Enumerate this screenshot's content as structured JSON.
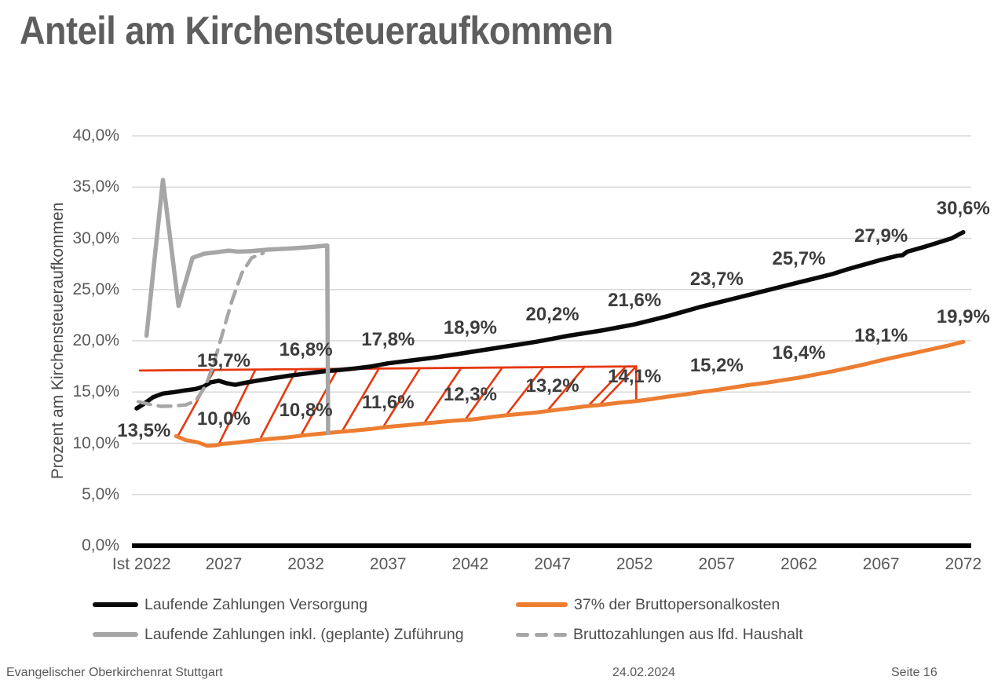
{
  "page": {
    "title": "Anteil am Kirchensteueraufkommen"
  },
  "footer": {
    "organization": "Evangelischer Oberkirchenrat Stuttgart",
    "date": "24.02.2024",
    "page_label": "Seite 16"
  },
  "colors": {
    "title_text": "#5e5e5e",
    "axis_text": "#595959",
    "data_label_text": "#3d3d3d",
    "gridline": "#d9d9d9",
    "axis_line": "#000000",
    "series_black": "#0a0a0a",
    "series_orange": "#ED7D31",
    "series_gray": "#a6a6a6",
    "hatch_red": "#e6380f"
  },
  "chart_data": {
    "type": "line",
    "title": "Anteil am Kirchensteueraufkommen",
    "ylabel": "Prozent am Kirchensteueraufkommen",
    "xlabel": "",
    "ylim": [
      0,
      40
    ],
    "grid": true,
    "legend_position": "bottom",
    "yticks": [
      {
        "pct": 0,
        "label": "0,0%"
      },
      {
        "pct": 5,
        "label": "5,0%"
      },
      {
        "pct": 10,
        "label": "10,0%"
      },
      {
        "pct": 15,
        "label": "15,0%"
      },
      {
        "pct": 20,
        "label": "20,0%"
      },
      {
        "pct": 25,
        "label": "25,0%"
      },
      {
        "pct": 30,
        "label": "30,0%"
      },
      {
        "pct": 35,
        "label": "35,0%"
      },
      {
        "pct": 40,
        "label": "40,0%"
      }
    ],
    "xticks": [
      {
        "year": 2022,
        "label": "Ist 2022"
      },
      {
        "year": 2027,
        "label": "2027"
      },
      {
        "year": 2032,
        "label": "2032"
      },
      {
        "year": 2037,
        "label": "2037"
      },
      {
        "year": 2042,
        "label": "2042"
      },
      {
        "year": 2047,
        "label": "2047"
      },
      {
        "year": 2052,
        "label": "2052"
      },
      {
        "year": 2057,
        "label": "2057"
      },
      {
        "year": 2062,
        "label": "2062"
      },
      {
        "year": 2067,
        "label": "2067"
      },
      {
        "year": 2072,
        "label": "2072"
      }
    ],
    "series": [
      {
        "id": "versorgung",
        "name": "Laufende Zahlungen Versorgung",
        "color": "#0a0a0a",
        "style": "solid",
        "stroke_width": 5.5,
        "points": [
          [
            2021.7,
            13.4
          ],
          [
            2022.1,
            13.8
          ],
          [
            2022.7,
            14.5
          ],
          [
            2023.3,
            14.85
          ],
          [
            2024,
            15.0
          ],
          [
            2024.6,
            15.15
          ],
          [
            2025.3,
            15.3
          ],
          [
            2025.8,
            15.55
          ],
          [
            2026.2,
            15.95
          ],
          [
            2026.7,
            16.1
          ],
          [
            2027.2,
            15.85
          ],
          [
            2027.7,
            15.7
          ],
          [
            2028.3,
            15.9
          ],
          [
            2029,
            16.1
          ],
          [
            2030,
            16.35
          ],
          [
            2031,
            16.6
          ],
          [
            2032,
            16.8
          ],
          [
            2033,
            17.0
          ],
          [
            2034,
            17.15
          ],
          [
            2035,
            17.3
          ],
          [
            2036,
            17.5
          ],
          [
            2037,
            17.8
          ],
          [
            2038,
            18.0
          ],
          [
            2039,
            18.2
          ],
          [
            2040,
            18.4
          ],
          [
            2041,
            18.65
          ],
          [
            2042,
            18.9
          ],
          [
            2043,
            19.15
          ],
          [
            2044,
            19.4
          ],
          [
            2045,
            19.65
          ],
          [
            2046,
            19.9
          ],
          [
            2047,
            20.2
          ],
          [
            2048,
            20.5
          ],
          [
            2049,
            20.75
          ],
          [
            2050,
            21.0
          ],
          [
            2051,
            21.3
          ],
          [
            2052,
            21.6
          ],
          [
            2053,
            22.0
          ],
          [
            2054,
            22.4
          ],
          [
            2055,
            22.85
          ],
          [
            2056,
            23.3
          ],
          [
            2057,
            23.7
          ],
          [
            2058,
            24.1
          ],
          [
            2059,
            24.5
          ],
          [
            2060,
            24.9
          ],
          [
            2061,
            25.3
          ],
          [
            2062,
            25.7
          ],
          [
            2063,
            26.1
          ],
          [
            2064,
            26.5
          ],
          [
            2065,
            27.0
          ],
          [
            2066,
            27.45
          ],
          [
            2067,
            27.9
          ],
          [
            2068,
            28.3
          ],
          [
            2068.3,
            28.35
          ],
          [
            2068.6,
            28.7
          ],
          [
            2069.5,
            29.1
          ],
          [
            2070.5,
            29.6
          ],
          [
            2071.3,
            30.0
          ],
          [
            2072,
            30.6
          ]
        ],
        "labels": [
          {
            "year": 2022,
            "value": 13.5,
            "text": "13,5%",
            "placement": "below"
          },
          {
            "year": 2027,
            "value": 15.7,
            "text": "15,7%",
            "placement": "above"
          },
          {
            "year": 2032,
            "value": 16.8,
            "text": "16,8%",
            "placement": "above"
          },
          {
            "year": 2037,
            "value": 17.8,
            "text": "17,8%",
            "placement": "above"
          },
          {
            "year": 2042,
            "value": 18.9,
            "text": "18,9%",
            "placement": "above"
          },
          {
            "year": 2047,
            "value": 20.2,
            "text": "20,2%",
            "placement": "above"
          },
          {
            "year": 2052,
            "value": 21.6,
            "text": "21,6%",
            "placement": "above"
          },
          {
            "year": 2057,
            "value": 23.7,
            "text": "23,7%",
            "placement": "above"
          },
          {
            "year": 2062,
            "value": 25.7,
            "text": "25,7%",
            "placement": "above"
          },
          {
            "year": 2067,
            "value": 27.9,
            "text": "27,9%",
            "placement": "above"
          },
          {
            "year": 2072,
            "value": 30.6,
            "text": "30,6%",
            "placement": "above"
          }
        ]
      },
      {
        "id": "bruttopersonalkosten",
        "name": "37% der Bruttopersonalkosten",
        "color": "#ED7D31",
        "style": "solid",
        "stroke_width": 5,
        "points": [
          [
            2024.1,
            10.7
          ],
          [
            2024.7,
            10.3
          ],
          [
            2025.4,
            10.1
          ],
          [
            2026,
            9.75
          ],
          [
            2026.5,
            9.8
          ],
          [
            2027,
            9.95
          ],
          [
            2028,
            10.1
          ],
          [
            2029,
            10.3
          ],
          [
            2030,
            10.45
          ],
          [
            2031,
            10.6
          ],
          [
            2032,
            10.8
          ],
          [
            2033,
            10.95
          ],
          [
            2034,
            11.1
          ],
          [
            2035,
            11.25
          ],
          [
            2036,
            11.4
          ],
          [
            2037,
            11.6
          ],
          [
            2038,
            11.75
          ],
          [
            2039,
            11.9
          ],
          [
            2040,
            12.05
          ],
          [
            2041,
            12.2
          ],
          [
            2042,
            12.3
          ],
          [
            2043,
            12.5
          ],
          [
            2044,
            12.7
          ],
          [
            2045,
            12.85
          ],
          [
            2046,
            13.0
          ],
          [
            2047,
            13.2
          ],
          [
            2048,
            13.4
          ],
          [
            2049,
            13.6
          ],
          [
            2050,
            13.75
          ],
          [
            2051,
            13.95
          ],
          [
            2052,
            14.1
          ],
          [
            2053,
            14.3
          ],
          [
            2054,
            14.55
          ],
          [
            2055,
            14.75
          ],
          [
            2056,
            15.0
          ],
          [
            2057,
            15.2
          ],
          [
            2058,
            15.45
          ],
          [
            2059,
            15.7
          ],
          [
            2060,
            15.9
          ],
          [
            2061,
            16.15
          ],
          [
            2062,
            16.4
          ],
          [
            2063,
            16.7
          ],
          [
            2064,
            17.0
          ],
          [
            2065,
            17.35
          ],
          [
            2066,
            17.7
          ],
          [
            2067,
            18.1
          ],
          [
            2068,
            18.45
          ],
          [
            2069,
            18.8
          ],
          [
            2070,
            19.15
          ],
          [
            2071,
            19.5
          ],
          [
            2072,
            19.9
          ]
        ],
        "labels": [
          {
            "year": 2027,
            "value": 10.0,
            "text": "10,0%",
            "placement": "above"
          },
          {
            "year": 2032,
            "value": 10.8,
            "text": "10,8%",
            "placement": "above"
          },
          {
            "year": 2037,
            "value": 11.6,
            "text": "11,6%",
            "placement": "above"
          },
          {
            "year": 2042,
            "value": 12.3,
            "text": "12,3%",
            "placement": "above"
          },
          {
            "year": 2047,
            "value": 13.2,
            "text": "13,2%",
            "placement": "above"
          },
          {
            "year": 2052,
            "value": 14.1,
            "text": "14,1%",
            "placement": "above"
          },
          {
            "year": 2057,
            "value": 15.2,
            "text": "15,2%",
            "placement": "above"
          },
          {
            "year": 2062,
            "value": 16.4,
            "text": "16,4%",
            "placement": "above"
          },
          {
            "year": 2067,
            "value": 18.1,
            "text": "18,1%",
            "placement": "above"
          },
          {
            "year": 2072,
            "value": 19.9,
            "text": "19,9%",
            "placement": "above"
          }
        ]
      },
      {
        "id": "inkl_zufuehrung",
        "name": "Laufende Zahlungen inkl. (geplante) Zuführung",
        "color": "#a6a6a6",
        "style": "solid",
        "stroke_width": 5.5,
        "points": [
          [
            2022.3,
            20.5
          ],
          [
            2023.3,
            35.7
          ],
          [
            2024.25,
            23.4
          ],
          [
            2025.1,
            28.1
          ],
          [
            2025.8,
            28.5
          ],
          [
            2026.6,
            28.65
          ],
          [
            2027.3,
            28.8
          ],
          [
            2027.9,
            28.7
          ],
          [
            2028.7,
            28.75
          ],
          [
            2029.7,
            28.9
          ],
          [
            2031,
            29.0
          ],
          [
            2032.3,
            29.15
          ],
          [
            2033.3,
            29.3
          ],
          [
            2033.35,
            11.0
          ]
        ],
        "labels": []
      },
      {
        "id": "brutto_haushalt",
        "name": "Bruttozahlungen aus lfd. Haushalt",
        "color": "#a6a6a6",
        "style": "dashed",
        "stroke_width": 4.5,
        "points": [
          [
            2021.8,
            14.05
          ],
          [
            2022.5,
            13.8
          ],
          [
            2023.2,
            13.6
          ],
          [
            2024,
            13.65
          ],
          [
            2024.7,
            13.75
          ],
          [
            2025.3,
            14.15
          ],
          [
            2025.9,
            15.6
          ],
          [
            2026.4,
            17.8
          ],
          [
            2026.9,
            20.6
          ],
          [
            2027.5,
            23.9
          ],
          [
            2028.1,
            26.6
          ],
          [
            2028.7,
            28.1
          ],
          [
            2029.4,
            28.55
          ]
        ],
        "labels": []
      }
    ],
    "hatch_band": {
      "color": "#e6380f",
      "top_line": [
        [
          2021.9,
          17.1
        ],
        [
          2052.1,
          17.5
        ]
      ],
      "right_edge_year": 2052.1,
      "bottom_series": "bruttopersonalkosten"
    },
    "legend": [
      {
        "label": "Laufende Zahlungen Versorgung",
        "color": "#0a0a0a",
        "style": "solid"
      },
      {
        "label": "37% der Bruttopersonalkosten",
        "color": "#ED7D31",
        "style": "solid"
      },
      {
        "label": "Laufende Zahlungen inkl. (geplante) Zuführung",
        "color": "#a6a6a6",
        "style": "solid"
      },
      {
        "label": "Bruttozahlungen aus lfd. Haushalt",
        "color": "#a6a6a6",
        "style": "dashed"
      }
    ]
  }
}
